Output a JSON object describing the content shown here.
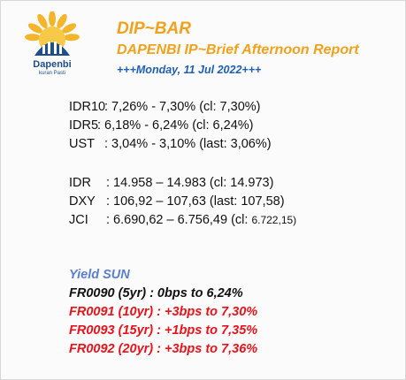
{
  "header": {
    "logo_name": "Dapenbi",
    "logo_tagline": "kuran Pasti",
    "title": "DIP~BAR",
    "subtitle": "DAPENBI IP~Brief Afternoon Report",
    "date": "+++Monday, 11 Jul 2022+++"
  },
  "bonds": [
    {
      "label": "IDR10",
      "text": ": 7,26% - 7,30% (cl: 7,30%)"
    },
    {
      "label": "IDR5",
      "text": ": 6,18% - 6,24% (cl: 6,24%)"
    },
    {
      "label": "UST",
      "text": ": 3,04% - 3,10% (last: 3,06%)"
    }
  ],
  "markets": [
    {
      "label": "IDR",
      "text": ": 14.958 – 14.983 (cl: 14.973)",
      "small": ""
    },
    {
      "label": "DXY",
      "text": ": 106,92 – 107,63 (last: 107,58)",
      "small": ""
    },
    {
      "label": "JCI",
      "text": ": 6.690,62 – 6.756,49 (cl: ",
      "small": "6.722,15)"
    }
  ],
  "yield": {
    "heading": "Yield SUN",
    "rows": [
      {
        "text": "FR0090 (5yr)   : 0bps to 6,24%",
        "color": "#111111"
      },
      {
        "text": "FR0091 (10yr) : +3bps to 7,30%",
        "color": "#e8121b"
      },
      {
        "text": "FR0093 (15yr) : +1bps to 7,35%",
        "color": "#e8121b"
      },
      {
        "text": "FR0092 (20yr) : +3bps to 7,36%",
        "color": "#e8121b"
      }
    ]
  }
}
